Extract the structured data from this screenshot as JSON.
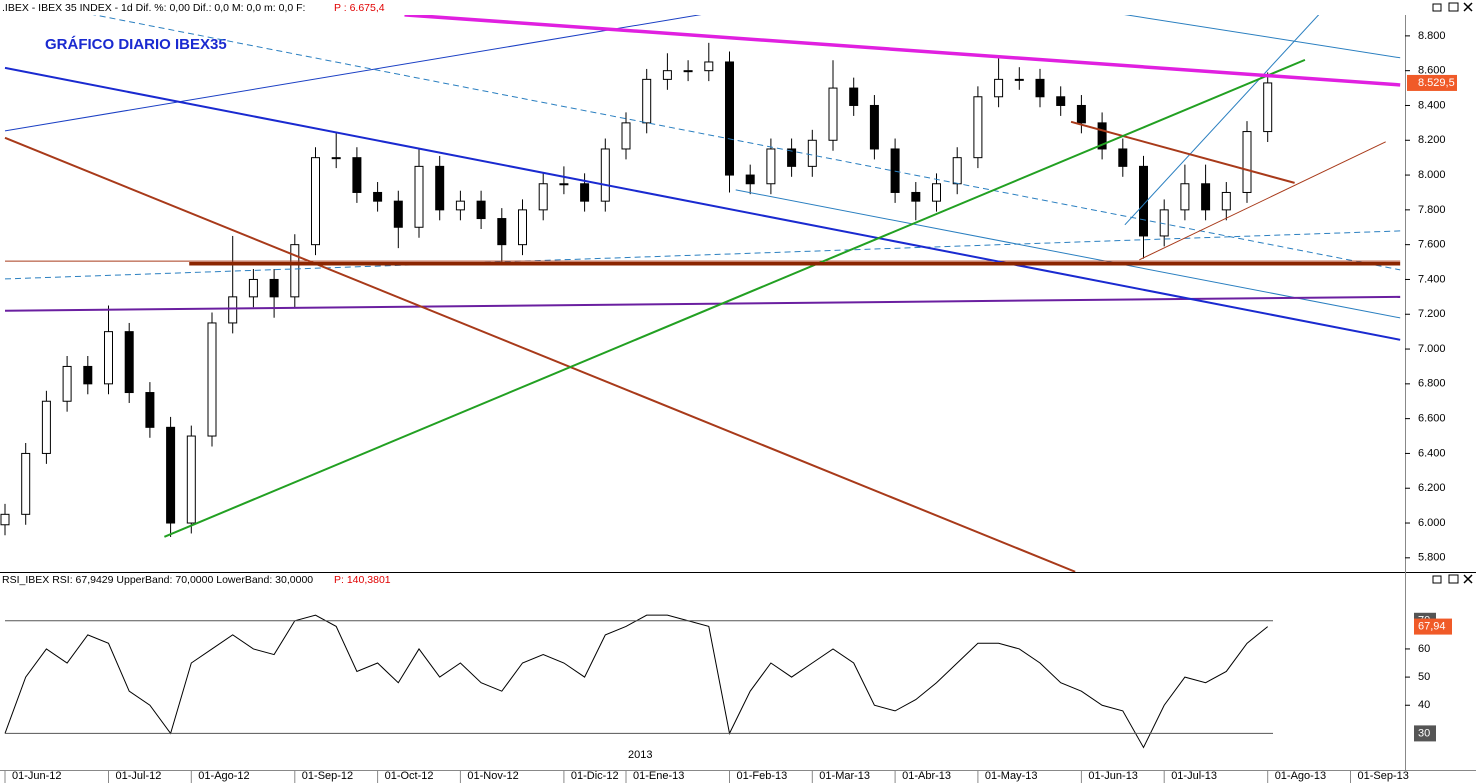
{
  "header": {
    "text": ".IBEX - IBEX 35 INDEX - 1d  Dif. %: 0,00  Dif.: 0,0  M: 0,0  m: 0,0  F:",
    "price": "P : 6.675,4"
  },
  "chart_data": [
    {
      "type": "candlestick",
      "title": "GRÁFICO DIARIO IBEX35",
      "categories": [
        "01-Jun-12",
        null,
        null,
        null,
        null,
        "01-Jul-12",
        null,
        null,
        null,
        "01-Ago-12",
        null,
        null,
        null,
        null,
        "01-Sep-12",
        null,
        null,
        null,
        "01-Oct-12",
        null,
        null,
        null,
        "01-Nov-12",
        null,
        null,
        null,
        null,
        "01-Dic-12",
        null,
        null,
        "01-Ene-13",
        null,
        null,
        null,
        null,
        "01-Feb-13",
        null,
        null,
        null,
        "01-Mar-13",
        null,
        null,
        null,
        "01-Abr-13",
        null,
        null,
        null,
        "01-May-13",
        null,
        null,
        null,
        null,
        "01-Jun-13",
        null,
        null,
        null,
        "01-Jul-13",
        null,
        null,
        null,
        null,
        "01-Ago-13",
        null,
        null,
        null,
        "01-Sep-13"
      ],
      "open": [
        5990,
        6050,
        6400,
        6700,
        6900,
        6800,
        7100,
        6750,
        6550,
        6000,
        6500,
        7150,
        7300,
        7400,
        7300,
        7600,
        8100,
        8100,
        7900,
        7850,
        7700,
        8050,
        7800,
        7850,
        7750,
        7600,
        7800,
        7950,
        7950,
        7850,
        8150,
        8300,
        8550,
        8600,
        8600,
        8650,
        8000,
        7950,
        8150,
        8050,
        8200,
        8500,
        8400,
        8150,
        7900,
        7850,
        7950,
        8100,
        8450,
        8550,
        8550,
        8450,
        8400,
        8300,
        8150,
        8050,
        7650,
        7800,
        7950,
        7800,
        7900,
        8250,
        null,
        null,
        null,
        null
      ],
      "high": [
        6110,
        6460,
        6760,
        6960,
        6960,
        7250,
        7150,
        6810,
        6610,
        6560,
        7210,
        7650,
        7460,
        7460,
        7660,
        8160,
        8250,
        8160,
        7960,
        7910,
        8150,
        8110,
        7910,
        7910,
        7810,
        7860,
        8010,
        8050,
        8010,
        8210,
        8360,
        8610,
        8700,
        8660,
        8760,
        8710,
        8060,
        8210,
        8210,
        8260,
        8660,
        8560,
        8460,
        8210,
        7960,
        8010,
        8160,
        8510,
        8670,
        8620,
        8610,
        8510,
        8460,
        8360,
        8210,
        8110,
        7860,
        8060,
        8060,
        7960,
        8310,
        8590,
        null,
        null,
        null,
        null
      ],
      "low": [
        5930,
        5990,
        6340,
        6640,
        6740,
        6740,
        6690,
        6490,
        5920,
        5940,
        6440,
        7090,
        7240,
        7180,
        7240,
        7540,
        8040,
        7840,
        7790,
        7580,
        7640,
        7740,
        7740,
        7690,
        7500,
        7540,
        7740,
        7890,
        7790,
        7790,
        8090,
        8240,
        8490,
        8540,
        8540,
        7900,
        7890,
        7890,
        7990,
        7990,
        8140,
        8340,
        8090,
        7840,
        7740,
        7790,
        7890,
        8040,
        8390,
        8490,
        8390,
        8340,
        8240,
        8090,
        7990,
        7520,
        7590,
        7740,
        7740,
        7740,
        7840,
        8190,
        null,
        null,
        null,
        null
      ],
      "close": [
        6050,
        6400,
        6700,
        6900,
        6800,
        7100,
        6750,
        6550,
        6000,
        6500,
        7150,
        7300,
        7400,
        7300,
        7600,
        8100,
        8100,
        7900,
        7850,
        7700,
        8050,
        7800,
        7850,
        7750,
        7600,
        7800,
        7950,
        7950,
        7850,
        8150,
        8300,
        8550,
        8600,
        8600,
        8650,
        8000,
        7950,
        8150,
        8050,
        8200,
        8500,
        8400,
        8150,
        7900,
        7850,
        7950,
        8100,
        8450,
        8550,
        8550,
        8450,
        8400,
        8300,
        8150,
        8050,
        7650,
        7800,
        7950,
        7800,
        7900,
        8250,
        8529.5,
        null,
        null,
        null,
        null
      ],
      "current_label": "8.529,5",
      "up_color": "#ffffff",
      "down_color": "#000000",
      "badge_color": "#f05a28",
      "ylim": [
        5730,
        8920
      ],
      "yticks": [
        {
          "value": 5800,
          "label": "5.800"
        },
        {
          "value": 6000,
          "label": "6.000"
        },
        {
          "value": 6200,
          "label": "6.200"
        },
        {
          "value": 6400,
          "label": "6.400"
        },
        {
          "value": 6600,
          "label": "6.600"
        },
        {
          "value": 6800,
          "label": "6.800"
        },
        {
          "value": 7000,
          "label": "7.000"
        },
        {
          "value": 7200,
          "label": "7.200"
        },
        {
          "value": 7400,
          "label": "7.400"
        },
        {
          "value": 7600,
          "label": "7.600"
        },
        {
          "value": 7800,
          "label": "7.800"
        },
        {
          "value": 8000,
          "label": "8.000"
        },
        {
          "value": 8200,
          "label": "8.200"
        },
        {
          "value": 8400,
          "label": "8.400"
        },
        {
          "value": 8600,
          "label": "8.600"
        },
        {
          "value": 8800,
          "label": "8.800"
        }
      ],
      "trendlines": [
        {
          "color": "#1a3fc4",
          "style": "thin",
          "x": [
            0,
            33.8
          ],
          "y": [
            8254,
            8926
          ]
        },
        {
          "color": "#2a7fc0",
          "style": "dashed",
          "x": [
            4.1,
            67.4
          ],
          "y": [
            8926,
            7455
          ]
        },
        {
          "color": "#2a7fc0",
          "style": "thin",
          "x": [
            35.3,
            67.4
          ],
          "y": [
            7915,
            7179
          ]
        },
        {
          "color": "#2a7fc0",
          "style": "thin",
          "x": [
            53.9,
            67.4
          ],
          "y": [
            8926,
            8674
          ]
        },
        {
          "color": "#2a7fc0",
          "style": "thin",
          "x": [
            54.1,
            63.5
          ],
          "y": [
            7714,
            8926
          ]
        },
        {
          "color": "#2a7fc0",
          "style": "dashed",
          "x": [
            0,
            67.4
          ],
          "y": [
            7403,
            7679
          ]
        },
        {
          "color": "#a83a1a",
          "style": "thin",
          "x": [
            0,
            67.4
          ],
          "y": [
            7505,
            7505
          ]
        },
        {
          "color": "#a83a1a",
          "style": "thin",
          "x": [
            54.8,
            66.7
          ],
          "y": [
            7513,
            8191
          ]
        },
        {
          "color": "#6a1fa0",
          "style": "thick",
          "x": [
            0,
            67.4
          ],
          "y": [
            7220,
            7300
          ]
        },
        {
          "color": "#1a2ad0",
          "style": "thick",
          "x": [
            0,
            67.4
          ],
          "y": [
            8616,
            7053
          ]
        },
        {
          "color": "#a83a1a",
          "style": "thick",
          "x": [
            0,
            51.7
          ],
          "y": [
            8214,
            5720
          ]
        },
        {
          "color": "#a83a1a",
          "style": "thick",
          "x": [
            51.5,
            62.3
          ],
          "y": [
            8306,
            7955
          ]
        },
        {
          "color": "#22a022",
          "style": "thick",
          "x": [
            7.7,
            62.8
          ],
          "y": [
            5921,
            8662
          ]
        },
        {
          "color": "#8b2500",
          "style": "heavy",
          "x": [
            8.9,
            67.4
          ],
          "y": [
            7490,
            7490
          ]
        },
        {
          "color": "#e020e0",
          "style": "heavy",
          "x": [
            19.3,
            67.4
          ],
          "y": [
            8921,
            8518
          ]
        }
      ]
    },
    {
      "type": "line",
      "title": "RSI_IBEX RSI: 67,9429 UpperBand: 70,0000 LowerBand: 30,0000",
      "price": "P: 140,3801",
      "year_label": "2013",
      "values": [
        30,
        50,
        60,
        55,
        65,
        62,
        45,
        40,
        30,
        55,
        60,
        65,
        60,
        58,
        70,
        72,
        68,
        52,
        55,
        48,
        60,
        50,
        55,
        48,
        45,
        55,
        58,
        55,
        50,
        65,
        68,
        72,
        72,
        70,
        68,
        30,
        45,
        55,
        50,
        55,
        60,
        55,
        40,
        38,
        42,
        48,
        55,
        62,
        62,
        60,
        55,
        48,
        45,
        40,
        38,
        25,
        40,
        50,
        48,
        52,
        62,
        67.94,
        null,
        null,
        null,
        null
      ],
      "current_label": "67,94",
      "color": "#000000",
      "badge_color": "#f05a28",
      "band_color": "#555555",
      "bands": [
        70,
        30
      ],
      "ylim": [
        17,
        82
      ],
      "yticks": [
        40,
        50,
        60
      ]
    }
  ]
}
